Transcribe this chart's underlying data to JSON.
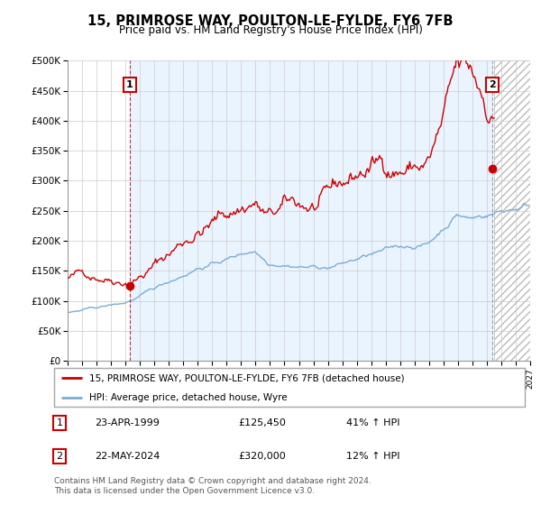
{
  "title": "15, PRIMROSE WAY, POULTON-LE-FYLDE, FY6 7FB",
  "subtitle": "Price paid vs. HM Land Registry's House Price Index (HPI)",
  "legend_line1": "15, PRIMROSE WAY, POULTON-LE-FYLDE, FY6 7FB (detached house)",
  "legend_line2": "HPI: Average price, detached house, Wyre",
  "point1_date": "23-APR-1999",
  "point1_price": "£125,450",
  "point1_hpi": "41% ↑ HPI",
  "point2_date": "22-MAY-2024",
  "point2_price": "£320,000",
  "point2_hpi": "12% ↑ HPI",
  "footer": "Contains HM Land Registry data © Crown copyright and database right 2024.\nThis data is licensed under the Open Government Licence v3.0.",
  "red_color": "#cc0000",
  "blue_color": "#7aadd4",
  "blue_fill_color": "#ddeeff",
  "grid_color": "#cccccc",
  "hatch_color": "#bbbbbb",
  "point1_x": 1999.3,
  "point1_y": 125450,
  "point2_x": 2024.38,
  "point2_y": 320000,
  "xlim": [
    1995.0,
    2027.0
  ],
  "ylim": [
    0,
    500000
  ],
  "yticks": [
    0,
    50000,
    100000,
    150000,
    200000,
    250000,
    300000,
    350000,
    400000,
    450000,
    500000
  ],
  "hatch_start": 2024.5
}
